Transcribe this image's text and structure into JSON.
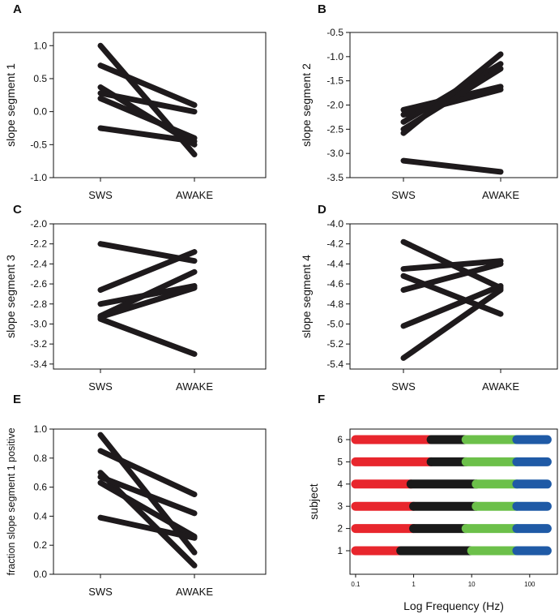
{
  "chart_data": [
    {
      "type": "line",
      "panel": "A",
      "categories": [
        "SWS",
        "AWAKE"
      ],
      "ylabel": "slope segment 1",
      "ylim": [
        -1.0,
        1.2
      ],
      "yticks": [
        "-1.0",
        "-0.5",
        "0.0",
        "0.5",
        "1.0"
      ],
      "yticks_values": [
        -1.0,
        -0.5,
        0.0,
        0.5,
        1.0
      ],
      "series": [
        {
          "name": "subject 1",
          "values": [
            1.0,
            -0.65
          ]
        },
        {
          "name": "subject 2",
          "values": [
            0.7,
            0.1
          ]
        },
        {
          "name": "subject 3",
          "values": [
            0.37,
            -0.5
          ]
        },
        {
          "name": "subject 4",
          "values": [
            0.28,
            0.0
          ]
        },
        {
          "name": "subject 5",
          "values": [
            0.2,
            -0.4
          ]
        },
        {
          "name": "subject 6",
          "values": [
            -0.25,
            -0.45
          ]
        }
      ]
    },
    {
      "type": "line",
      "panel": "B",
      "categories": [
        "SWS",
        "AWAKE"
      ],
      "ylabel": "slope segment  2",
      "ylim": [
        -3.5,
        -0.5
      ],
      "yticks": [
        "-3.5",
        "-3.0",
        "-2.5",
        "-2.0",
        "-1.5",
        "-1.0",
        "-0.5"
      ],
      "yticks_values": [
        -3.5,
        -3.0,
        -2.5,
        -2.0,
        -1.5,
        -1.0,
        -0.5
      ],
      "series": [
        {
          "name": "subject 1",
          "values": [
            -2.1,
            -1.62
          ]
        },
        {
          "name": "subject 2",
          "values": [
            -2.2,
            -1.68
          ]
        },
        {
          "name": "subject 3",
          "values": [
            -2.35,
            -1.15
          ]
        },
        {
          "name": "subject 4",
          "values": [
            -2.5,
            -1.25
          ]
        },
        {
          "name": "subject 5",
          "values": [
            -2.58,
            -0.95
          ]
        },
        {
          "name": "subject 6",
          "values": [
            -3.15,
            -3.38
          ]
        }
      ]
    },
    {
      "type": "line",
      "panel": "C",
      "categories": [
        "SWS",
        "AWAKE"
      ],
      "ylabel": "slope segment 3",
      "ylim": [
        -3.45,
        -2.0
      ],
      "yticks": [
        "-3.4",
        "-3.2",
        "-3.0",
        "-2.8",
        "-2.6",
        "-2.4",
        "-2.2",
        "-2.0"
      ],
      "yticks_values": [
        -3.4,
        -3.2,
        -3.0,
        -2.8,
        -2.6,
        -2.4,
        -2.2,
        -2.0
      ],
      "series": [
        {
          "name": "subject 1",
          "values": [
            -2.2,
            -2.37
          ]
        },
        {
          "name": "subject 2",
          "values": [
            -2.66,
            -2.28
          ]
        },
        {
          "name": "subject 3",
          "values": [
            -2.8,
            -2.62
          ]
        },
        {
          "name": "subject 4",
          "values": [
            -2.92,
            -2.48
          ]
        },
        {
          "name": "subject 5",
          "values": [
            -2.93,
            -2.64
          ]
        },
        {
          "name": "subject 6",
          "values": [
            -2.95,
            -3.3
          ]
        }
      ]
    },
    {
      "type": "line",
      "panel": "D",
      "categories": [
        "SWS",
        "AWAKE"
      ],
      "ylabel": "slope segment 4",
      "ylim": [
        -5.45,
        -4.0
      ],
      "yticks": [
        "-5.4",
        "-5.2",
        "-5.0",
        "-4.8",
        "-4.6",
        "-4.4",
        "-4.2",
        "-4.0"
      ],
      "yticks_values": [
        -5.4,
        -5.2,
        -5.0,
        -4.8,
        -4.6,
        -4.4,
        -4.2,
        -4.0
      ],
      "series": [
        {
          "name": "subject 1",
          "values": [
            -4.18,
            -4.64
          ]
        },
        {
          "name": "subject 2",
          "values": [
            -4.45,
            -4.37
          ]
        },
        {
          "name": "subject 3",
          "values": [
            -4.52,
            -4.9
          ]
        },
        {
          "name": "subject 4",
          "values": [
            -4.66,
            -4.4
          ]
        },
        {
          "name": "subject 5",
          "values": [
            -5.02,
            -4.62
          ]
        },
        {
          "name": "subject 6",
          "values": [
            -5.34,
            -4.66
          ]
        }
      ]
    },
    {
      "type": "line",
      "panel": "E",
      "categories": [
        "SWS",
        "AWAKE"
      ],
      "ylabel": "fraction slope segment 1 positive",
      "ylim": [
        0.0,
        1.0
      ],
      "yticks": [
        "0.0",
        "0.2",
        "0.4",
        "0.6",
        "0.8",
        "1.0"
      ],
      "yticks_values": [
        0.0,
        0.2,
        0.4,
        0.6,
        0.8,
        1.0
      ],
      "series": [
        {
          "name": "subject 1",
          "values": [
            0.96,
            0.15
          ]
        },
        {
          "name": "subject 2",
          "values": [
            0.85,
            0.55
          ]
        },
        {
          "name": "subject 3",
          "values": [
            0.7,
            0.06
          ]
        },
        {
          "name": "subject 4",
          "values": [
            0.67,
            0.42
          ]
        },
        {
          "name": "subject 5",
          "values": [
            0.63,
            0.26
          ]
        },
        {
          "name": "subject 6",
          "values": [
            0.39,
            0.25
          ]
        }
      ]
    },
    {
      "type": "bar",
      "panel": "F",
      "orientation": "horizontal",
      "xlabel": "Log Frequency (Hz)",
      "ylabel": "subject",
      "xscale": "log",
      "xlim": [
        0.08,
        300
      ],
      "xticks": [
        "0.1",
        "1",
        "10",
        "100"
      ],
      "xticks_values": [
        0.1,
        1,
        10,
        100
      ],
      "yticks": [
        "1",
        "2",
        "3",
        "4",
        "5",
        "6"
      ],
      "colors": {
        "segment1": "#e8262d",
        "segment2": "#1a1a1a",
        "segment3": "#6cc04a",
        "segment4": "#1f5aa6"
      },
      "rows": [
        {
          "subject": "1",
          "segments": [
            [
              0.1,
              0.6
            ],
            [
              0.6,
              10
            ],
            [
              10,
              60
            ],
            [
              60,
              200
            ]
          ]
        },
        {
          "subject": "2",
          "segments": [
            [
              0.1,
              1
            ],
            [
              1,
              8
            ],
            [
              8,
              60
            ],
            [
              60,
              200
            ]
          ]
        },
        {
          "subject": "3",
          "segments": [
            [
              0.1,
              1
            ],
            [
              1,
              12
            ],
            [
              12,
              60
            ],
            [
              60,
              200
            ]
          ]
        },
        {
          "subject": "4",
          "segments": [
            [
              0.1,
              0.9
            ],
            [
              0.9,
              12
            ],
            [
              12,
              60
            ],
            [
              60,
              200
            ]
          ]
        },
        {
          "subject": "5",
          "segments": [
            [
              0.1,
              2
            ],
            [
              2,
              8
            ],
            [
              8,
              60
            ],
            [
              60,
              200
            ]
          ]
        },
        {
          "subject": "6",
          "segments": [
            [
              0.1,
              2
            ],
            [
              2,
              8
            ],
            [
              8,
              60
            ],
            [
              60,
              200
            ]
          ]
        }
      ]
    }
  ]
}
